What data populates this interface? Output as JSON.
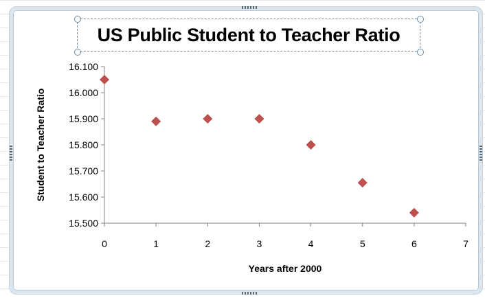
{
  "chart_data": {
    "type": "scatter",
    "title": "US Public Student to Teacher Ratio",
    "xlabel": "Years after 2000",
    "ylabel": "Student to Teacher Ratio",
    "xlim": [
      0,
      7
    ],
    "ylim": [
      15.5,
      16.1
    ],
    "x_ticks": [
      "0",
      "1",
      "2",
      "3",
      "4",
      "5",
      "6",
      "7"
    ],
    "y_ticks": [
      "15.500",
      "15.600",
      "15.700",
      "15.800",
      "15.900",
      "16.000",
      "16.100"
    ],
    "grid": false,
    "legend": "none",
    "marker": "diamond",
    "marker_color": "#c0504d",
    "points": [
      {
        "x": 0,
        "y": 16.05
      },
      {
        "x": 1,
        "y": 15.89
      },
      {
        "x": 2,
        "y": 15.9
      },
      {
        "x": 3,
        "y": 15.9
      },
      {
        "x": 4,
        "y": 15.8
      },
      {
        "x": 5,
        "y": 15.655
      },
      {
        "x": 6,
        "y": 15.54
      }
    ]
  }
}
